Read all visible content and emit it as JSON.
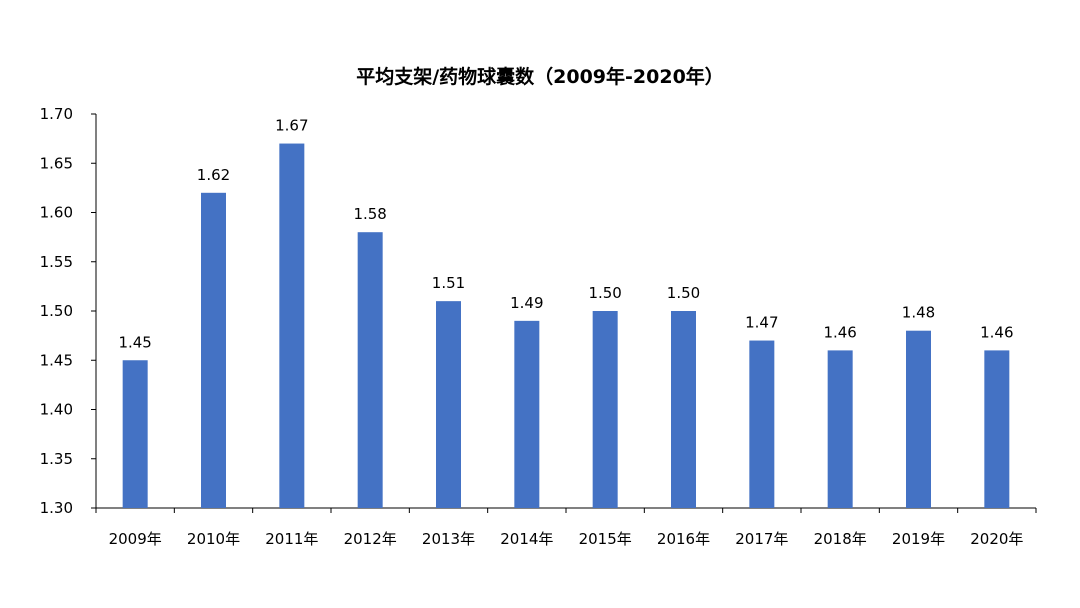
{
  "chart_data": {
    "type": "bar",
    "title": "平均支架/药物球囊数（2009年-2020年）",
    "categories": [
      "2009年",
      "2010年",
      "2011年",
      "2012年",
      "2013年",
      "2014年",
      "2015年",
      "2016年",
      "2017年",
      "2018年",
      "2019年",
      "2020年"
    ],
    "values": [
      1.45,
      1.62,
      1.67,
      1.58,
      1.51,
      1.49,
      1.5,
      1.5,
      1.47,
      1.46,
      1.48,
      1.46
    ],
    "data_labels": [
      "1.45",
      "1.62",
      "1.67",
      "1.58",
      "1.51",
      "1.49",
      "1.50",
      "1.50",
      "1.47",
      "1.46",
      "1.48",
      "1.46"
    ],
    "xlabel": "",
    "ylabel": "",
    "ylim": [
      1.3,
      1.7
    ],
    "yticks": [
      1.3,
      1.35,
      1.4,
      1.45,
      1.5,
      1.55,
      1.6,
      1.65,
      1.7
    ],
    "ytick_labels": [
      "1.30",
      "1.35",
      "1.40",
      "1.45",
      "1.50",
      "1.55",
      "1.60",
      "1.65",
      "1.70"
    ],
    "bar_color": "#4472C4",
    "axis_color": "#000000",
    "grid": false,
    "legend": "none"
  }
}
